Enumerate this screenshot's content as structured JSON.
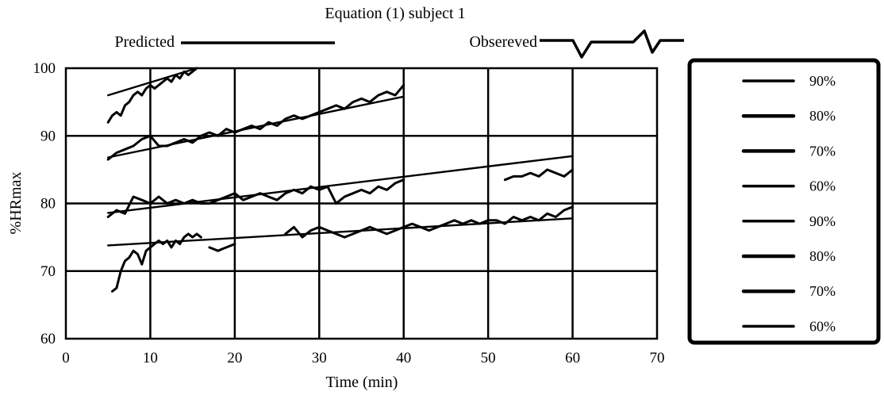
{
  "chart_data": {
    "type": "line",
    "title": "Equation (1) subject 1",
    "xlabel": "Time (min)",
    "ylabel": "%HRmax",
    "xlim": [
      0,
      70
    ],
    "ylim": [
      60,
      100
    ],
    "xticks": [
      0,
      10,
      20,
      30,
      40,
      50,
      60,
      70
    ],
    "yticks": [
      60,
      70,
      80,
      90,
      100
    ],
    "grid": true,
    "style_legend": {
      "predicted_label": "Predicted",
      "observed_label": "Obsereved",
      "placement": "top"
    },
    "legend": {
      "placement": "right",
      "entries": [
        "90%",
        "80%",
        "70%",
        "60%",
        "90%",
        "80%",
        "70%",
        "60%"
      ]
    },
    "series": [
      {
        "name": "90%",
        "kind": "predicted",
        "x": [
          5,
          15.5
        ],
        "y": [
          96,
          100
        ]
      },
      {
        "name": "80%",
        "kind": "predicted",
        "x": [
          5,
          40
        ],
        "y": [
          86.8,
          95.8
        ]
      },
      {
        "name": "70%",
        "kind": "predicted",
        "x": [
          5,
          60
        ],
        "y": [
          78.6,
          87
        ]
      },
      {
        "name": "60%",
        "kind": "predicted",
        "x": [
          5,
          60
        ],
        "y": [
          73.8,
          77.8
        ]
      },
      {
        "name": "90%",
        "kind": "observed",
        "x": [
          5,
          5.5,
          6,
          6.5,
          7,
          7.5,
          8,
          8.5,
          9,
          9.5,
          10,
          10.5,
          11,
          11.5,
          12,
          12.5,
          13,
          13.5,
          14,
          14.5,
          15,
          15.5
        ],
        "y": [
          92,
          93,
          93.5,
          93,
          94.5,
          95,
          96,
          96.5,
          96,
          97,
          97.5,
          97,
          97.5,
          98,
          98.5,
          98,
          99,
          98.5,
          99.5,
          99,
          99.5,
          100
        ]
      },
      {
        "name": "80%",
        "kind": "observed",
        "x": [
          5,
          6,
          7,
          8,
          9,
          10,
          11,
          12,
          13,
          14,
          15,
          16,
          17,
          18,
          19,
          20,
          21,
          22,
          23,
          24,
          25,
          26,
          27,
          28,
          29,
          30,
          31,
          32,
          33,
          34,
          35,
          36,
          37,
          38,
          39,
          40
        ],
        "y": [
          86.5,
          87.5,
          88,
          88.5,
          89.5,
          90,
          88.5,
          88.5,
          89,
          89.5,
          89,
          90,
          90.5,
          90,
          91,
          90.5,
          91,
          91.5,
          91,
          92,
          91.5,
          92.5,
          93,
          92.5,
          93,
          93.5,
          94,
          94.5,
          94,
          95,
          95.5,
          95,
          96,
          96.5,
          96,
          97.5
        ]
      },
      {
        "name": "70%",
        "kind": "observed",
        "x": [
          5,
          6,
          7,
          8,
          9,
          10,
          11,
          12,
          13,
          14,
          15,
          16,
          17,
          18,
          19,
          20,
          21,
          22,
          23,
          24,
          25,
          26,
          27,
          28,
          29,
          30,
          31,
          32,
          33,
          34,
          35,
          36,
          37,
          38,
          39,
          40
        ],
        "y": [
          78,
          79,
          78.5,
          81,
          80.5,
          80,
          81,
          80,
          80.5,
          80,
          80.5,
          80,
          80,
          80.5,
          81,
          81.5,
          80.5,
          81,
          81.5,
          81,
          80.5,
          81.5,
          82,
          81.5,
          82.5,
          82,
          82.5,
          80,
          81,
          81.5,
          82,
          81.5,
          82.5,
          82,
          83,
          83.5
        ]
      },
      {
        "name": "70%",
        "kind": "observed",
        "x": [
          52,
          53,
          54,
          55,
          56,
          57,
          58,
          59,
          60
        ],
        "y": [
          83.5,
          84,
          84,
          84.5,
          84,
          85,
          84.5,
          84,
          85
        ]
      },
      {
        "name": "60%",
        "kind": "observed",
        "x": [
          5.5,
          6,
          6.5,
          7,
          7.5,
          8,
          8.5,
          9,
          9.5,
          10,
          10.5,
          11,
          11.5,
          12,
          12.5,
          13,
          13.5,
          14,
          14.5,
          15,
          15.5,
          16
        ],
        "y": [
          67,
          67.5,
          70,
          71.5,
          72,
          73,
          72.5,
          71,
          73,
          73.5,
          74,
          74.5,
          74,
          74.5,
          73.5,
          74.5,
          74,
          75,
          75.5,
          75,
          75.5,
          75
        ]
      },
      {
        "name": "60%",
        "kind": "observed",
        "x": [
          17,
          18,
          19,
          20
        ],
        "y": [
          73.5,
          73,
          73.5,
          74
        ]
      },
      {
        "name": "60%",
        "kind": "observed",
        "x": [
          26,
          27,
          28,
          29,
          30,
          31,
          32,
          33,
          34,
          35,
          36,
          37,
          38,
          39,
          40,
          41,
          42,
          43,
          44,
          45,
          46,
          47,
          48,
          49,
          50,
          51,
          52,
          53,
          54,
          55,
          56,
          57,
          58,
          59,
          60
        ],
        "y": [
          75.5,
          76.5,
          75,
          76,
          76.5,
          76,
          75.5,
          75,
          75.5,
          76,
          76.5,
          76,
          75.5,
          76,
          76.5,
          77,
          76.5,
          76,
          76.5,
          77,
          77.5,
          77,
          77.5,
          77,
          77.5,
          77.5,
          77,
          78,
          77.5,
          78,
          77.5,
          78.5,
          78,
          79,
          79.5
        ]
      }
    ]
  }
}
